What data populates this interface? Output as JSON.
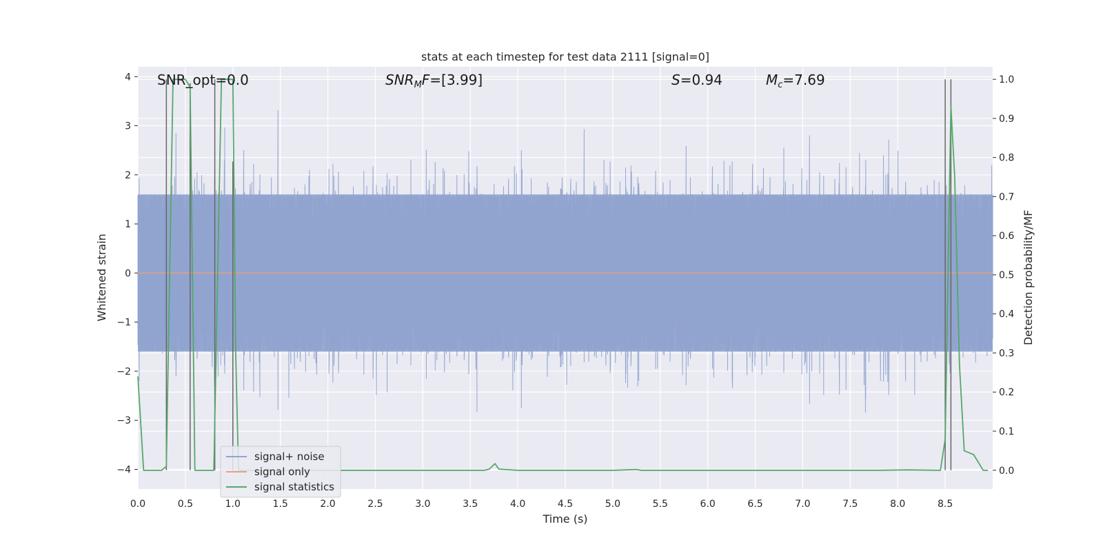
{
  "chart_data": {
    "type": "line",
    "title": "stats at each timestep for test data 2111 [signal=0]",
    "xlabel": "Time (s)",
    "ylabel": "Whitened strain",
    "y2label": "Detection probability/MF",
    "xlim": [
      0.0,
      9.0
    ],
    "ylim": [
      -4.4,
      4.2
    ],
    "y2lim": [
      -0.048,
      1.032
    ],
    "xticks": [
      "0.0",
      "0.5",
      "1.0",
      "1.5",
      "2.0",
      "2.5",
      "3.0",
      "3.5",
      "4.0",
      "4.5",
      "5.0",
      "5.5",
      "6.0",
      "6.5",
      "7.0",
      "7.5",
      "8.0",
      "8.5"
    ],
    "yticks": [
      "4",
      "3",
      "2",
      "1",
      "0",
      "−1",
      "−2",
      "−3",
      "−4"
    ],
    "y2ticks": [
      "1.0",
      "0.9",
      "0.8",
      "0.7",
      "0.6",
      "0.5",
      "0.4",
      "0.3",
      "0.2",
      "0.1",
      "0.0"
    ],
    "grid": true,
    "legend_position": "lower-left",
    "annotations": {
      "snr_opt": "SNR_opt=0.0",
      "snr_mf": "=[3.99]",
      "snr_mf_label": "SNR",
      "snr_mf_sub": "M",
      "snr_mf_f": "F",
      "s_label": "S",
      "s_value": "=0.94",
      "mc_label": "M",
      "mc_sub": "c",
      "mc_value": "=7.69"
    },
    "series": [
      {
        "name": "signal+ noise",
        "color": "#8fa3cf",
        "description": "whitened strain noise, roughly symmetric about 0 with spikes to about ±3.7",
        "envelope_core": [
          -1.6,
          1.6
        ]
      },
      {
        "name": "signal only",
        "color": "#e8a07e",
        "x": [
          0.0,
          9.0
        ],
        "y": [
          0.0,
          0.0
        ]
      },
      {
        "name": "signal statistics",
        "color": "#55a868",
        "axis": "right",
        "x": [
          0.0,
          0.06,
          0.2,
          0.25,
          0.3,
          0.37,
          0.5,
          0.55,
          0.6,
          0.65,
          0.8,
          0.88,
          1.0,
          1.03,
          1.06,
          1.1,
          1.2,
          2.0,
          3.65,
          3.7,
          3.76,
          3.8,
          4.0,
          5.0,
          5.25,
          5.3,
          7.8,
          8.1,
          8.45,
          8.5,
          8.56,
          8.6,
          8.65,
          8.7,
          8.8,
          8.9,
          8.95
        ],
        "y": [
          0.24,
          0.0,
          0.0,
          0.0,
          0.01,
          1.0,
          1.0,
          0.98,
          0.0,
          0.0,
          0.0,
          1.0,
          1.0,
          0.3,
          0.0,
          0.0,
          0.0,
          0.0,
          0.0,
          0.003,
          0.017,
          0.003,
          0.0,
          0.0,
          0.002,
          0.0,
          0.0,
          0.001,
          0.0,
          0.08,
          0.93,
          0.75,
          0.27,
          0.05,
          0.04,
          0.0,
          0.0
        ]
      }
    ],
    "vertical_markers": [
      {
        "x": 0.3,
        "y_top": 1.0
      },
      {
        "x": 0.55,
        "y_top": 0.99
      },
      {
        "x": 0.81,
        "y_top": 1.0
      },
      {
        "x": 1.0,
        "y_top": 0.79
      },
      {
        "x": 8.5,
        "y_top": 1.0
      },
      {
        "x": 8.56,
        "y_top": 1.0
      }
    ]
  }
}
